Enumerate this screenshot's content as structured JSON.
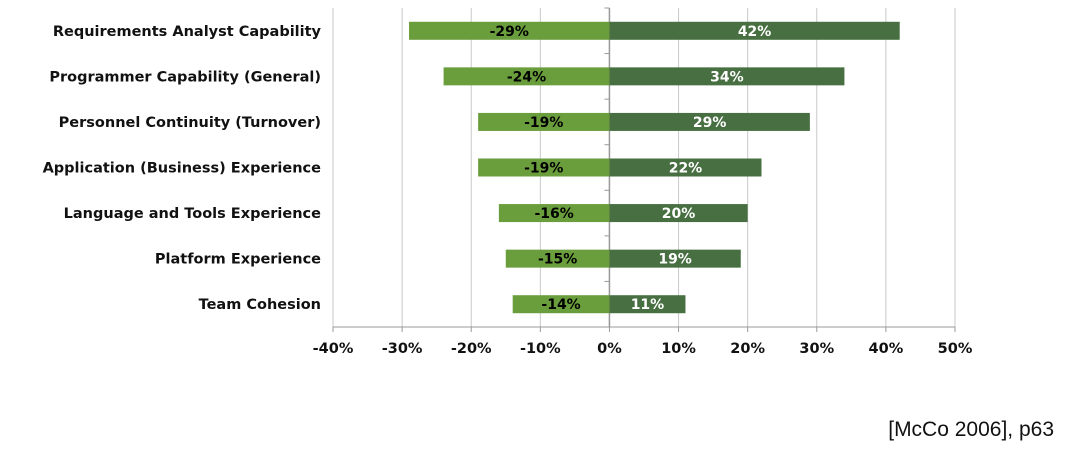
{
  "chart_data": {
    "type": "bar",
    "orientation": "horizontal",
    "stacked": "diverging",
    "categories": [
      "Requirements Analyst Capability",
      "Programmer Capability (General)",
      "Personnel Continuity (Turnover)",
      "Application (Business) Experience",
      "Language and Tools Experience",
      "Platform Experience",
      "Team Cohesion"
    ],
    "series": [
      {
        "values": [
          -29,
          -24,
          -19,
          -19,
          -16,
          -15,
          -14
        ],
        "labels": [
          "-29%",
          "-24%",
          "-19%",
          "-19%",
          "-16%",
          "-15%",
          "-14%"
        ],
        "color": "#6a9e3c",
        "label_color": "#000000"
      },
      {
        "values": [
          42,
          34,
          29,
          22,
          20,
          19,
          11
        ],
        "labels": [
          "42%",
          "34%",
          "29%",
          "22%",
          "20%",
          "19%",
          "11%"
        ],
        "color": "#476f41",
        "label_color": "#ffffff"
      }
    ],
    "xlim": [
      -40,
      50
    ],
    "xticks": [
      "-40%",
      "-30%",
      "-20%",
      "-10%",
      "0%",
      "10%",
      "20%",
      "30%",
      "40%",
      "50%"
    ],
    "grid": true,
    "title": "",
    "xlabel": "",
    "ylabel": ""
  },
  "citation": "[McCo 2006], p63"
}
